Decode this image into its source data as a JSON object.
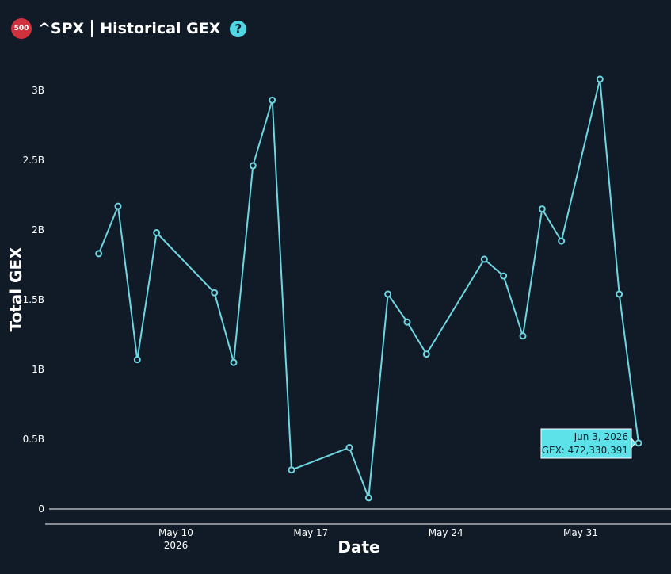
{
  "header": {
    "badge": "500",
    "ticker": "^SPX",
    "title": "Historical GEX",
    "help_icon": "question-circle-icon"
  },
  "colors": {
    "background": "#111b27",
    "line": "#6dd6e0",
    "badge": "#d0323d",
    "tooltip": "#5ee2ea"
  },
  "chart_data": {
    "type": "line",
    "xlabel": "Date",
    "ylabel": "Total GEX",
    "xlim": [
      "2026-05-05",
      "2026-06-05"
    ],
    "ylim": [
      -100000000,
      3250000000
    ],
    "y_ticks": [
      {
        "value": 0,
        "label": "0"
      },
      {
        "value": 500000000,
        "label": "0.5B"
      },
      {
        "value": 1000000000,
        "label": "1B"
      },
      {
        "value": 1500000000,
        "label": "1.5B"
      },
      {
        "value": 2000000000,
        "label": "2B"
      },
      {
        "value": 2500000000,
        "label": "2.5B"
      },
      {
        "value": 3000000000,
        "label": "3B"
      }
    ],
    "x_ticks": [
      {
        "date": "2026-05-10",
        "label": "May 10",
        "sublabel": "2026"
      },
      {
        "date": "2026-05-17",
        "label": "May 17",
        "sublabel": ""
      },
      {
        "date": "2026-05-24",
        "label": "May 24",
        "sublabel": ""
      },
      {
        "date": "2026-05-31",
        "label": "May 31",
        "sublabel": ""
      }
    ],
    "grid": false,
    "series": [
      {
        "points": [
          {
            "date": "2026-05-06",
            "value": 1830000000
          },
          {
            "date": "2026-05-07",
            "value": 2170000000
          },
          {
            "date": "2026-05-08",
            "value": 1070000000
          },
          {
            "date": "2026-05-09",
            "value": 1980000000
          },
          {
            "date": "2026-05-12",
            "value": 1550000000
          },
          {
            "date": "2026-05-13",
            "value": 1050000000
          },
          {
            "date": "2026-05-14",
            "value": 2460000000
          },
          {
            "date": "2026-05-15",
            "value": 2930000000
          },
          {
            "date": "2026-05-16",
            "value": 280000000
          },
          {
            "date": "2026-05-19",
            "value": 440000000
          },
          {
            "date": "2026-05-20",
            "value": 80000000
          },
          {
            "date": "2026-05-21",
            "value": 1540000000
          },
          {
            "date": "2026-05-22",
            "value": 1340000000
          },
          {
            "date": "2026-05-23",
            "value": 1110000000
          },
          {
            "date": "2026-05-26",
            "value": 1790000000
          },
          {
            "date": "2026-05-27",
            "value": 1670000000
          },
          {
            "date": "2026-05-28",
            "value": 1240000000
          },
          {
            "date": "2026-05-29",
            "value": 2150000000
          },
          {
            "date": "2026-05-30",
            "value": 1920000000
          },
          {
            "date": "2026-06-01",
            "value": 3080000000
          },
          {
            "date": "2026-06-02",
            "value": 1540000000
          },
          {
            "date": "2026-06-03",
            "value": 472330391
          }
        ]
      }
    ],
    "tooltip": {
      "date_text": "Jun 3, 2026",
      "value_text": "GEX: 472,330,391"
    }
  }
}
